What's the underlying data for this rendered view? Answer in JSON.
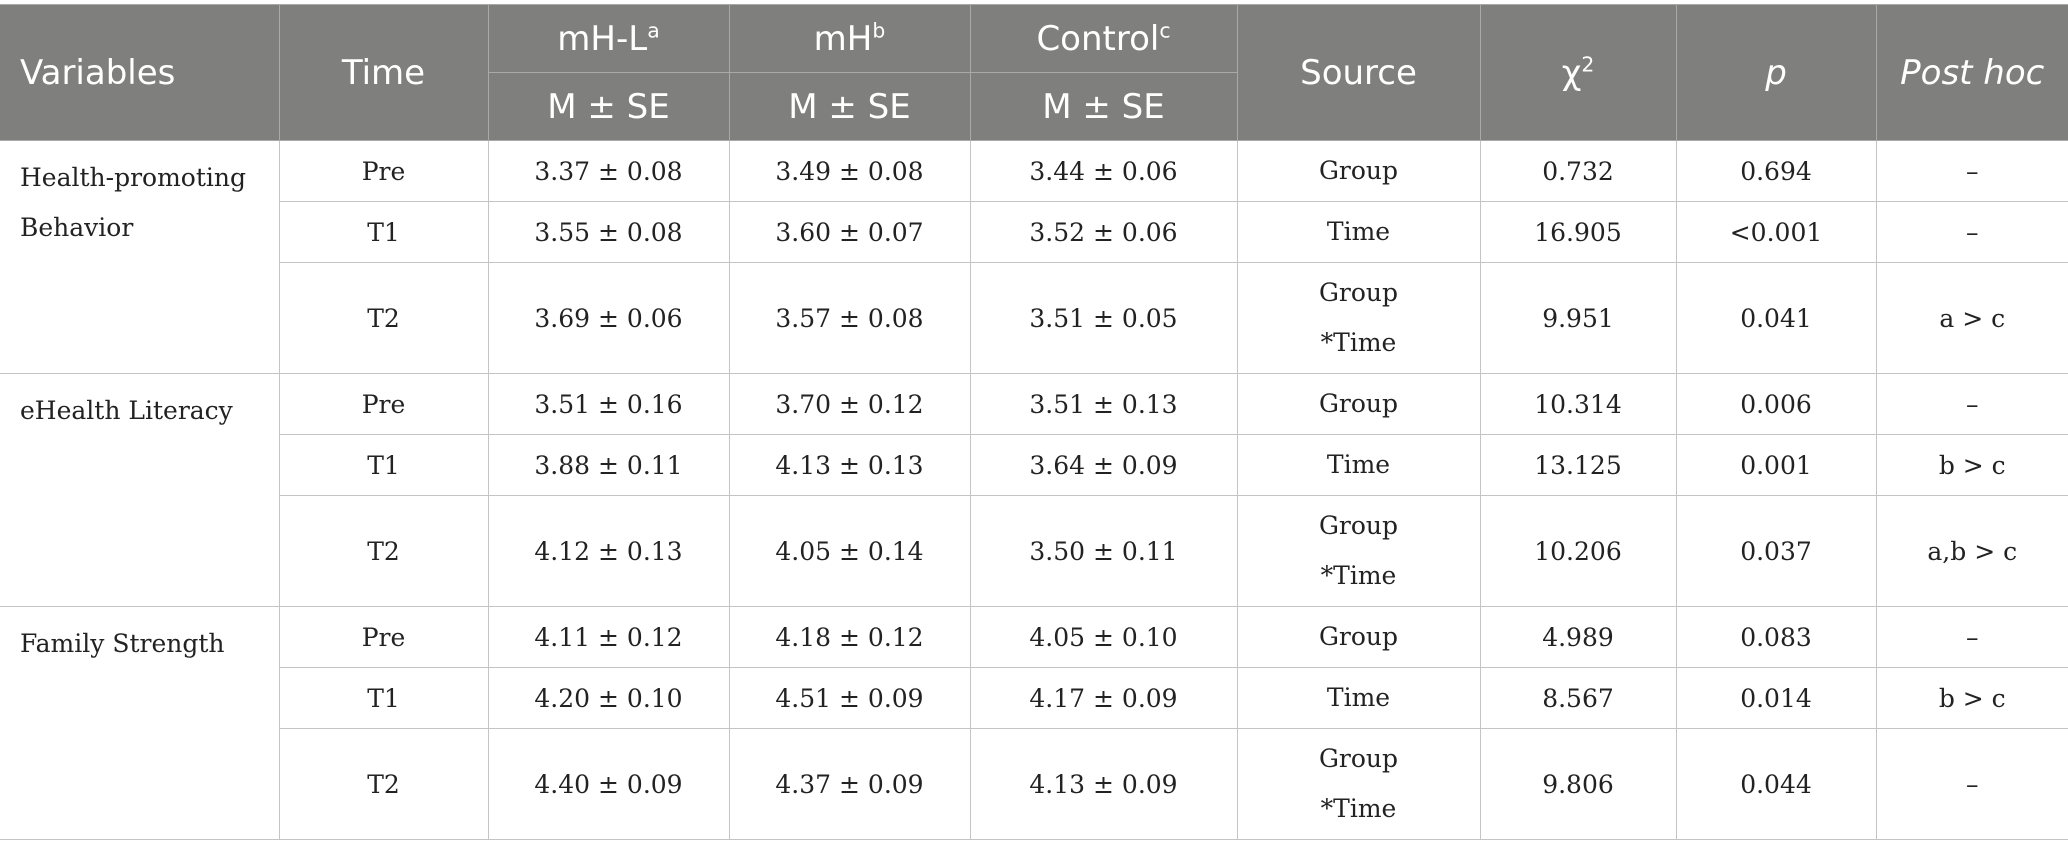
{
  "header": {
    "variables": "Variables",
    "time": "Time",
    "group_a": "mH-L",
    "group_a_sup": "a",
    "group_b": "mH",
    "group_b_sup": "b",
    "group_c": "Control",
    "group_c_sup": "c",
    "stat_a": "M ± SE",
    "stat_b": "M ± SE",
    "stat_c": "M ± SE",
    "source": "Source",
    "chi": "χ",
    "chi_sup": "2",
    "p": "p",
    "posthoc": "Post hoc"
  },
  "blocks": [
    {
      "variable": "Health-promoting Behavior",
      "rows": [
        {
          "time": "Pre",
          "a": "3.37 ± 0.08",
          "b": "3.49 ± 0.08",
          "c": "3.44 ± 0.06",
          "source1": "Group",
          "source2": "",
          "chi": "0.732",
          "p": "0.694",
          "posthoc": "–"
        },
        {
          "time": "T1",
          "a": "3.55 ± 0.08",
          "b": "3.60 ± 0.07",
          "c": "3.52 ± 0.06",
          "source1": "Time",
          "source2": "",
          "chi": "16.905",
          "p": "<0.001",
          "posthoc": "–"
        },
        {
          "time": "T2",
          "a": "3.69 ± 0.06",
          "b": "3.57 ± 0.08",
          "c": "3.51 ± 0.05",
          "source1": "Group",
          "source2": "*Time",
          "chi": "9.951",
          "p": "0.041",
          "posthoc": "a > c"
        }
      ]
    },
    {
      "variable": "eHealth Literacy",
      "rows": [
        {
          "time": "Pre",
          "a": "3.51 ± 0.16",
          "b": "3.70 ± 0.12",
          "c": "3.51 ± 0.13",
          "source1": "Group",
          "source2": "",
          "chi": "10.314",
          "p": "0.006",
          "posthoc": "–"
        },
        {
          "time": "T1",
          "a": "3.88 ± 0.11",
          "b": "4.13 ± 0.13",
          "c": "3.64 ± 0.09",
          "source1": "Time",
          "source2": "",
          "chi": "13.125",
          "p": "0.001",
          "posthoc": "b > c"
        },
        {
          "time": "T2",
          "a": "4.12 ± 0.13",
          "b": "4.05 ± 0.14",
          "c": "3.50 ± 0.11",
          "source1": "Group",
          "source2": "*Time",
          "chi": "10.206",
          "p": "0.037",
          "posthoc": "a,b > c"
        }
      ]
    },
    {
      "variable": "Family Strength",
      "rows": [
        {
          "time": "Pre",
          "a": "4.11 ± 0.12",
          "b": "4.18 ± 0.12",
          "c": "4.05 ± 0.10",
          "source1": "Group",
          "source2": "",
          "chi": "4.989",
          "p": "0.083",
          "posthoc": "–"
        },
        {
          "time": "T1",
          "a": "4.20 ± 0.10",
          "b": "4.51 ± 0.09",
          "c": "4.17 ± 0.09",
          "source1": "Time",
          "source2": "",
          "chi": "8.567",
          "p": "0.014",
          "posthoc": "b > c"
        },
        {
          "time": "T2",
          "a": "4.40 ± 0.09",
          "b": "4.37 ± 0.09",
          "c": "4.13 ± 0.09",
          "source1": "Group",
          "source2": "*Time",
          "chi": "9.806",
          "p": "0.044",
          "posthoc": "–"
        }
      ]
    }
  ]
}
